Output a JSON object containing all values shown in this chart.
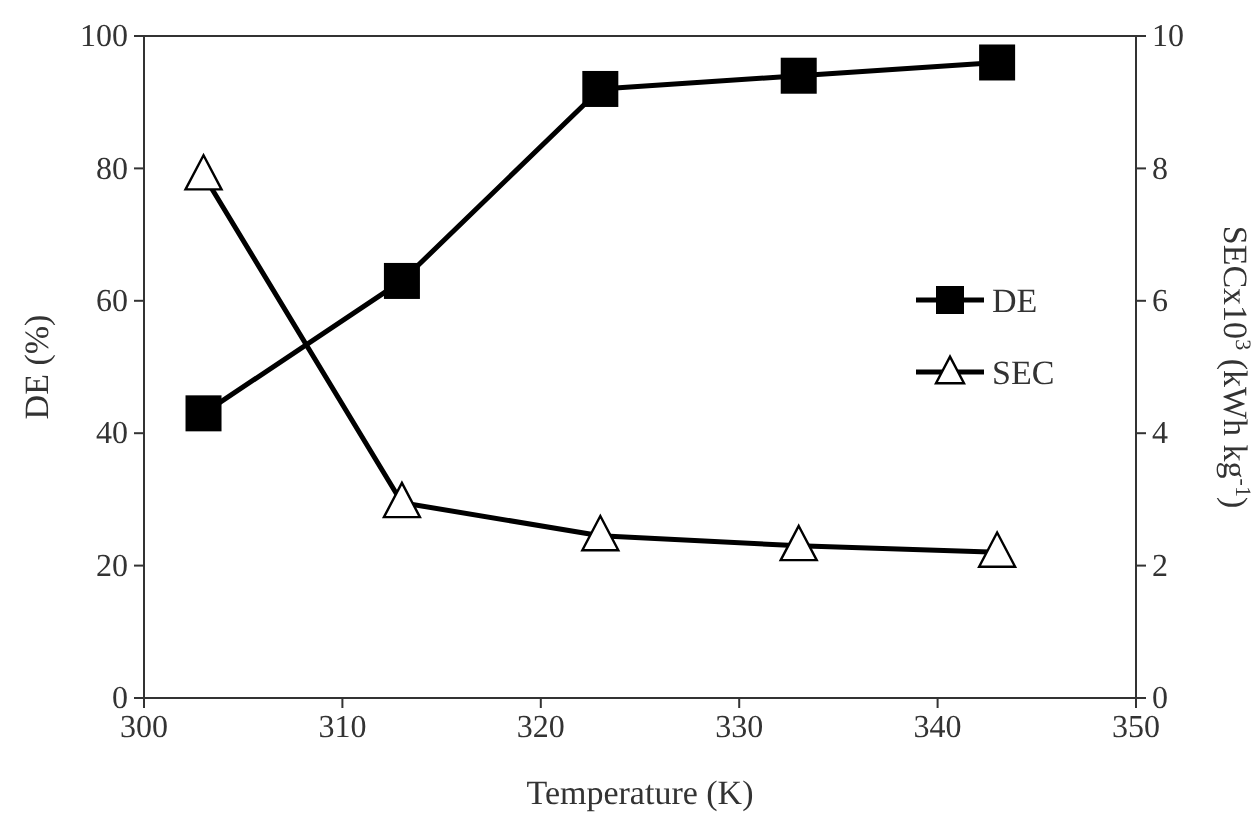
{
  "chart_data": {
    "type": "line",
    "xlabel": "Temperature (K)",
    "ylabel": "DE (%)",
    "y2label": "SECx10$^{3}$ (kWh kg$^{-1}$)",
    "x": [
      303,
      313,
      323,
      333,
      343
    ],
    "series": [
      {
        "name": "DE",
        "color": "#000000",
        "marker": "square",
        "values": [
          43,
          63,
          92,
          94,
          96
        ]
      },
      {
        "name": "SEC",
        "color": "#000000",
        "marker": "triangle",
        "axis": "y2",
        "values": [
          7.9,
          2.95,
          2.45,
          2.3,
          2.2
        ]
      }
    ],
    "xlim": [
      300,
      350
    ],
    "xticks": [
      300,
      310,
      320,
      330,
      340,
      350
    ],
    "ylim": [
      0,
      100
    ],
    "yticks": [
      0,
      20,
      40,
      60,
      80,
      100
    ],
    "y2lim": [
      0,
      10
    ],
    "y2ticks": [
      0,
      2,
      4,
      6,
      8,
      10
    ],
    "grid": false,
    "legend": "right",
    "line_style": "solid"
  }
}
